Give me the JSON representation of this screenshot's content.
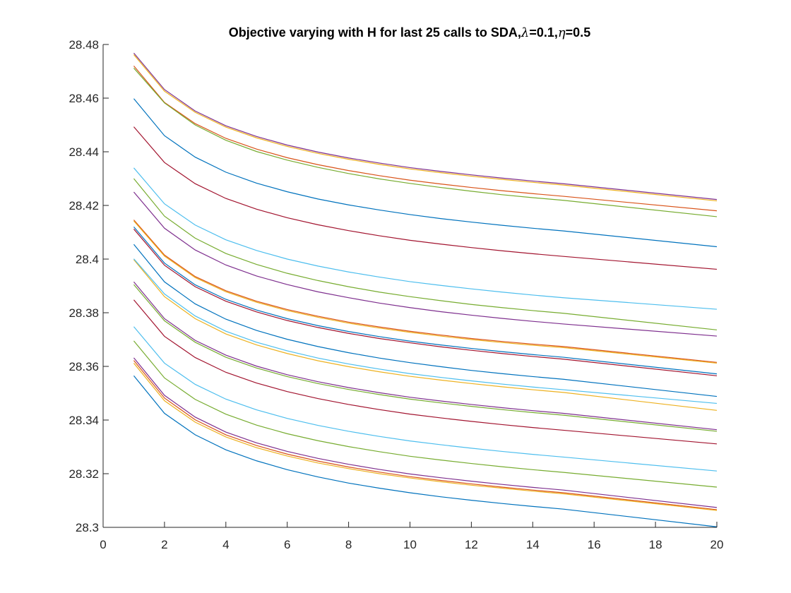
{
  "chart_data": {
    "type": "line",
    "title": {
      "prefix": "Objective varying with H for last 25 calls to SDA,",
      "lambda_symbol": "λ",
      "lambda_value": "=0.1,",
      "eta_symbol": "η",
      "eta_value": "=0.5"
    },
    "xlabel": "",
    "ylabel": "",
    "xlim": [
      0,
      20
    ],
    "ylim": [
      28.3,
      28.48
    ],
    "x_ticks": [
      "0",
      "2",
      "4",
      "6",
      "8",
      "10",
      "12",
      "14",
      "16",
      "18",
      "20"
    ],
    "y_ticks": [
      "28.3",
      "28.32",
      "28.34",
      "28.36",
      "28.38",
      "28.4",
      "28.42",
      "28.44",
      "28.46",
      "28.48"
    ],
    "grid": false,
    "legend": "none",
    "x": [
      1,
      2,
      3,
      4,
      5,
      6,
      7,
      8,
      9,
      10,
      11,
      12,
      13,
      14,
      15,
      20
    ],
    "series": [
      {
        "color": "#7E2F8E",
        "values": [
          28.4768,
          28.4632,
          28.4552,
          28.4497,
          28.4457,
          28.4425,
          28.4399,
          28.4377,
          28.4358,
          28.4341,
          28.4327,
          28.4314,
          28.4302,
          28.4291,
          28.4281,
          28.4222
        ]
      },
      {
        "color": "#EDB120",
        "values": [
          28.4762,
          28.4626,
          28.4547,
          28.4492,
          28.4452,
          28.442,
          28.4394,
          28.4372,
          28.4353,
          28.4336,
          28.4322,
          28.4309,
          28.4297,
          28.4286,
          28.4276,
          28.4217
        ]
      },
      {
        "color": "#D95319",
        "values": [
          28.472,
          28.4584,
          28.4505,
          28.445,
          28.441,
          28.4378,
          28.4352,
          28.433,
          28.4311,
          28.4294,
          28.428,
          28.4267,
          28.4255,
          28.4244,
          28.4234,
          28.418
        ]
      },
      {
        "color": "#77AC30",
        "values": [
          28.4712,
          28.4582,
          28.45,
          28.4443,
          28.4401,
          28.4369,
          28.4342,
          28.4319,
          28.4299,
          28.4282,
          28.4267,
          28.4253,
          28.424,
          28.4229,
          28.4219,
          28.4158
        ]
      },
      {
        "color": "#0072BD",
        "values": [
          28.4598,
          28.446,
          28.438,
          28.4324,
          28.4283,
          28.4251,
          28.4224,
          28.4202,
          28.4183,
          28.4166,
          28.4151,
          28.4138,
          28.4126,
          28.4115,
          28.4105,
          28.4046
        ]
      },
      {
        "color": "#A2142F",
        "values": [
          28.4493,
          28.436,
          28.4281,
          28.4226,
          28.4186,
          28.4154,
          28.4128,
          28.4106,
          28.4087,
          28.407,
          28.4056,
          28.4043,
          28.4031,
          28.402,
          28.401,
          28.3962
        ]
      },
      {
        "color": "#4DBEEE",
        "values": [
          28.434,
          28.4206,
          28.4127,
          28.4072,
          28.4032,
          28.4,
          28.3974,
          28.3952,
          28.3933,
          28.3916,
          28.3902,
          28.3889,
          28.3877,
          28.3866,
          28.3856,
          28.3813
        ]
      },
      {
        "color": "#77AC30",
        "values": [
          28.43,
          28.416,
          28.4078,
          28.4021,
          28.398,
          28.3947,
          28.392,
          28.3897,
          28.3877,
          28.386,
          28.3845,
          28.3831,
          28.3819,
          28.3808,
          28.3798,
          28.3736
        ]
      },
      {
        "color": "#7E2F8E",
        "values": [
          28.425,
          28.4115,
          28.4034,
          28.3978,
          28.3937,
          28.3905,
          28.3878,
          28.3856,
          28.3836,
          28.3819,
          28.3804,
          28.3791,
          28.3779,
          28.3768,
          28.3758,
          28.3713
        ]
      },
      {
        "color": "#D95319",
        "values": [
          28.4146,
          28.4015,
          28.3935,
          28.3882,
          28.3843,
          28.3812,
          28.3787,
          28.3765,
          28.3747,
          28.3731,
          28.3717,
          28.3704,
          28.3693,
          28.3683,
          28.3674,
          28.3615
        ]
      },
      {
        "color": "#EDB120",
        "values": [
          28.4142,
          28.4011,
          28.3931,
          28.3878,
          28.3839,
          28.3808,
          28.3783,
          28.3761,
          28.3743,
          28.3727,
          28.3713,
          28.37,
          28.3689,
          28.3679,
          28.367,
          28.3612
        ]
      },
      {
        "color": "#0072BD",
        "values": [
          28.412,
          28.3985,
          28.3904,
          28.385,
          28.381,
          28.3778,
          28.3752,
          28.373,
          28.3711,
          28.3694,
          28.368,
          28.3667,
          28.3655,
          28.3644,
          28.3634,
          28.3572
        ]
      },
      {
        "color": "#A2142F",
        "values": [
          28.4112,
          28.3977,
          28.3897,
          28.3843,
          28.3803,
          28.3771,
          28.3745,
          28.3723,
          28.3704,
          28.3688,
          28.3673,
          28.366,
          28.3648,
          28.3637,
          28.3627,
          28.3565
        ]
      },
      {
        "color": "#0072BD",
        "values": [
          28.4055,
          28.3915,
          28.3833,
          28.3776,
          28.3734,
          28.3701,
          28.3674,
          28.3651,
          28.3631,
          28.3614,
          28.3599,
          28.3585,
          28.3573,
          28.3562,
          28.3552,
          28.3488
        ]
      },
      {
        "color": "#EDB120",
        "values": [
          28.3998,
          28.386,
          28.3778,
          28.3721,
          28.368,
          28.3648,
          28.3621,
          28.3599,
          28.358,
          28.3563,
          28.3549,
          28.3536,
          28.3524,
          28.3513,
          28.3503,
          28.3436
        ]
      },
      {
        "color": "#4DBEEE",
        "values": [
          28.4001,
          28.387,
          28.3788,
          28.3731,
          28.369,
          28.3658,
          28.3631,
          28.3609,
          28.359,
          28.3573,
          28.3559,
          28.3546,
          28.3534,
          28.3523,
          28.3513,
          28.3462
        ]
      },
      {
        "color": "#7E2F8E",
        "values": [
          28.3915,
          28.3778,
          28.3697,
          28.3642,
          28.3601,
          28.3569,
          28.3543,
          28.3521,
          28.3502,
          28.3485,
          28.3471,
          28.3458,
          28.3446,
          28.3435,
          28.3425,
          28.3364
        ]
      },
      {
        "color": "#77AC30",
        "values": [
          28.3905,
          28.377,
          28.369,
          28.3634,
          28.3594,
          28.3562,
          28.3536,
          28.3514,
          28.3495,
          28.3478,
          28.3464,
          28.3451,
          28.3439,
          28.3428,
          28.3418,
          28.3358
        ]
      },
      {
        "color": "#A2142F",
        "values": [
          28.3848,
          28.3712,
          28.3633,
          28.3578,
          28.3538,
          28.3506,
          28.348,
          28.3458,
          28.3439,
          28.3422,
          28.3408,
          28.3395,
          28.3383,
          28.3372,
          28.3362,
          28.3311
        ]
      },
      {
        "color": "#4DBEEE",
        "values": [
          28.3748,
          28.3612,
          28.3533,
          28.3478,
          28.3438,
          28.3406,
          28.338,
          28.3358,
          28.3339,
          28.3322,
          28.3308,
          28.3295,
          28.3283,
          28.3272,
          28.3262,
          28.321
        ]
      },
      {
        "color": "#77AC30",
        "values": [
          28.3695,
          28.3557,
          28.3477,
          28.3422,
          28.3381,
          28.3349,
          28.3323,
          28.3301,
          28.3282,
          28.3265,
          28.3251,
          28.3238,
          28.3226,
          28.3215,
          28.3205,
          28.315
        ]
      },
      {
        "color": "#7E2F8E",
        "values": [
          28.3632,
          28.3492,
          28.3411,
          28.3355,
          28.3315,
          28.3283,
          28.3257,
          28.3235,
          28.3216,
          28.3199,
          28.3185,
          28.3172,
          28.316,
          28.3149,
          28.3139,
          28.3074
        ]
      },
      {
        "color": "#D95319",
        "values": [
          28.3622,
          28.3482,
          28.3401,
          28.3345,
          28.3305,
          28.3273,
          28.3247,
          28.3225,
          28.3206,
          28.3189,
          28.3175,
          28.3162,
          28.315,
          28.3139,
          28.3129,
          28.3066
        ]
      },
      {
        "color": "#EDB120",
        "values": [
          28.3612,
          28.3472,
          28.3392,
          28.3337,
          28.3297,
          28.3266,
          28.324,
          28.3219,
          28.32,
          28.3184,
          28.317,
          28.3157,
          28.3146,
          28.3135,
          28.3125,
          28.3063
        ]
      },
      {
        "color": "#0072BD",
        "values": [
          28.3565,
          28.3425,
          28.3345,
          28.3289,
          28.3248,
          28.3215,
          28.3188,
          28.3165,
          28.3146,
          28.3129,
          28.3114,
          28.3101,
          28.3089,
          28.3078,
          28.3068,
          28.3002
        ]
      }
    ]
  }
}
